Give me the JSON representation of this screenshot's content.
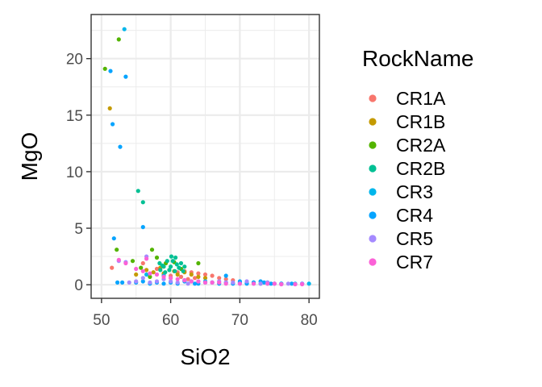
{
  "chart_data": {
    "type": "scatter",
    "title": "",
    "xlabel": "SiO2",
    "ylabel": "MgO",
    "xlim": [
      48.5,
      81.5
    ],
    "ylim": [
      -1.2,
      23.9
    ],
    "x_ticks": [
      50,
      60,
      70,
      80
    ],
    "y_ticks": [
      0,
      5,
      10,
      15,
      20
    ],
    "x_tick_labels": [
      "50",
      "60",
      "70",
      "80"
    ],
    "y_tick_labels": [
      "0",
      "5",
      "10",
      "15",
      "20"
    ],
    "grid": true,
    "legend": {
      "title": "RockName",
      "position": "right"
    },
    "series": [
      {
        "name": "CR1A",
        "color": "#F8766D",
        "points": [
          [
            51.5,
            1.5
          ],
          [
            56,
            1.9
          ],
          [
            58,
            1.4
          ],
          [
            59,
            0.9
          ],
          [
            60,
            0.8
          ],
          [
            61,
            1.1
          ],
          [
            62,
            1.2
          ],
          [
            63,
            1.1
          ],
          [
            64,
            1.0
          ],
          [
            65,
            0.9
          ],
          [
            66,
            0.8
          ],
          [
            63.5,
            0.6
          ],
          [
            67,
            0.6
          ],
          [
            68,
            0.5
          ],
          [
            69,
            0.4
          ],
          [
            62.5,
            0.5
          ],
          [
            61.5,
            0.7
          ]
        ]
      },
      {
        "name": "CR1B",
        "color": "#C49A00",
        "points": [
          [
            51.2,
            15.6
          ],
          [
            55,
            0.9
          ],
          [
            56.5,
            1.3
          ],
          [
            57.5,
            1.1
          ],
          [
            59,
            1.0
          ],
          [
            60.5,
            1.2
          ],
          [
            61,
            0.9
          ],
          [
            62,
            1.1
          ],
          [
            63,
            0.9
          ],
          [
            64,
            0.7
          ],
          [
            65,
            0.6
          ],
          [
            58.5,
            1.5
          ],
          [
            60,
            0.6
          ]
        ]
      },
      {
        "name": "CR2A",
        "color": "#53B400",
        "points": [
          [
            50.5,
            19.1
          ],
          [
            52.5,
            21.7
          ],
          [
            52.2,
            3.1
          ],
          [
            54.5,
            2.1
          ],
          [
            57.3,
            3.1
          ],
          [
            55.7,
            1.5
          ],
          [
            58,
            2.4
          ],
          [
            59.3,
            1.9
          ],
          [
            60.5,
            2.0
          ],
          [
            61.5,
            1.4
          ],
          [
            64,
            1.9
          ],
          [
            57,
            0.7
          ]
        ]
      },
      {
        "name": "CR2B",
        "color": "#00C094",
        "points": [
          [
            55.3,
            8.3
          ],
          [
            56,
            7.3
          ],
          [
            58.4,
            1.9
          ],
          [
            58.5,
            1.3
          ],
          [
            59,
            1.6
          ],
          [
            59.5,
            2.1
          ],
          [
            59.8,
            1.3
          ],
          [
            60,
            1.6
          ],
          [
            60.3,
            2.1
          ],
          [
            60.6,
            1.2
          ],
          [
            60.9,
            1.8
          ],
          [
            61.2,
            1.5
          ],
          [
            61.5,
            1.9
          ],
          [
            59.2,
            1.1
          ],
          [
            60.1,
            2.5
          ],
          [
            60.7,
            2.4
          ],
          [
            61.8,
            1.2
          ],
          [
            62,
            1.6
          ],
          [
            58.8,
            1.7
          ]
        ]
      },
      {
        "name": "CR3",
        "color": "#00B6EB",
        "points": [
          [
            53.3,
            22.6
          ],
          [
            56.5,
            0.9
          ],
          [
            59,
            0.8
          ],
          [
            62,
            0.4
          ],
          [
            65,
            0.3
          ],
          [
            68,
            0.2
          ],
          [
            70,
            0.2
          ],
          [
            72,
            0.2
          ],
          [
            74,
            0.1
          ],
          [
            76,
            0.1
          ],
          [
            78,
            0.1
          ],
          [
            80,
            0.1
          ],
          [
            66,
            0.2
          ],
          [
            63,
            0.3
          ],
          [
            75,
            0.1
          ],
          [
            71,
            0.15
          ],
          [
            73,
            0.1
          ],
          [
            79,
            0.1
          ]
        ]
      },
      {
        "name": "CR4",
        "color": "#06A4FF",
        "points": [
          [
            51.3,
            18.9
          ],
          [
            53.5,
            18.4
          ],
          [
            51.6,
            14.2
          ],
          [
            52.7,
            12.2
          ],
          [
            56,
            5.1
          ],
          [
            51.8,
            4.1
          ],
          [
            52.3,
            0.2
          ],
          [
            53,
            0.2
          ],
          [
            55,
            0.2
          ],
          [
            56,
            0.3
          ],
          [
            57,
            0.1
          ],
          [
            58,
            0.2
          ],
          [
            59,
            0.1
          ],
          [
            60,
            0.2
          ],
          [
            62,
            0.3
          ],
          [
            63.5,
            0.1
          ],
          [
            65,
            0.2
          ],
          [
            66,
            0.2
          ],
          [
            67,
            0.1
          ],
          [
            68,
            0.8
          ],
          [
            69,
            0.1
          ],
          [
            70,
            0.3
          ],
          [
            71,
            0.1
          ],
          [
            72,
            0.2
          ],
          [
            73,
            0.3
          ],
          [
            73.5,
            0.2
          ],
          [
            74,
            0.2
          ],
          [
            74.5,
            0.1
          ],
          [
            76,
            0.1
          ],
          [
            77.5,
            0.1
          ],
          [
            79,
            0.1
          ],
          [
            64,
            0.1
          ],
          [
            61,
            0.1
          ]
        ]
      },
      {
        "name": "CR5",
        "color": "#A58AFF",
        "points": [
          [
            52.5,
            2.1
          ],
          [
            53.5,
            2.0
          ],
          [
            54,
            0.2
          ],
          [
            55,
            0.3
          ],
          [
            56.5,
            2.5
          ],
          [
            57,
            0.2
          ],
          [
            58,
            0.3
          ],
          [
            59,
            0.5
          ],
          [
            60,
            0.3
          ],
          [
            61,
            0.2
          ],
          [
            62,
            0.4
          ],
          [
            63,
            0.3
          ],
          [
            64,
            0.3
          ],
          [
            65,
            0.2
          ],
          [
            66,
            0.2
          ],
          [
            67,
            0.3
          ],
          [
            68,
            0.2
          ],
          [
            69,
            0.2
          ],
          [
            70,
            0.1
          ],
          [
            71,
            0.3
          ],
          [
            72,
            0.1
          ],
          [
            73,
            0.1
          ],
          [
            74,
            0.2
          ],
          [
            75,
            0.1
          ],
          [
            76,
            0.05
          ],
          [
            77,
            0.1
          ],
          [
            78,
            0.05
          ],
          [
            79,
            0.1
          ],
          [
            56,
            0.6
          ],
          [
            62.5,
            0.1
          ]
        ]
      },
      {
        "name": "CR7",
        "color": "#FB61D7",
        "points": [
          [
            52.5,
            2.2
          ],
          [
            53.5,
            1.9
          ],
          [
            55,
            1.4
          ],
          [
            56,
            1.2
          ],
          [
            57,
            1.0
          ],
          [
            58,
            0.9
          ],
          [
            59,
            0.7
          ],
          [
            60,
            0.6
          ],
          [
            61,
            0.5
          ],
          [
            62,
            0.4
          ],
          [
            63,
            0.3
          ],
          [
            64,
            0.3
          ],
          [
            65,
            0.2
          ],
          [
            66,
            0.2
          ],
          [
            67,
            0.2
          ],
          [
            68,
            0.1
          ],
          [
            70,
            0.1
          ],
          [
            72,
            0.1
          ],
          [
            74,
            0.1
          ],
          [
            75,
            0.1
          ],
          [
            76,
            0.05
          ],
          [
            78,
            0.05
          ],
          [
            79,
            0.05
          ],
          [
            56.5,
            2.3
          ]
        ]
      }
    ]
  }
}
